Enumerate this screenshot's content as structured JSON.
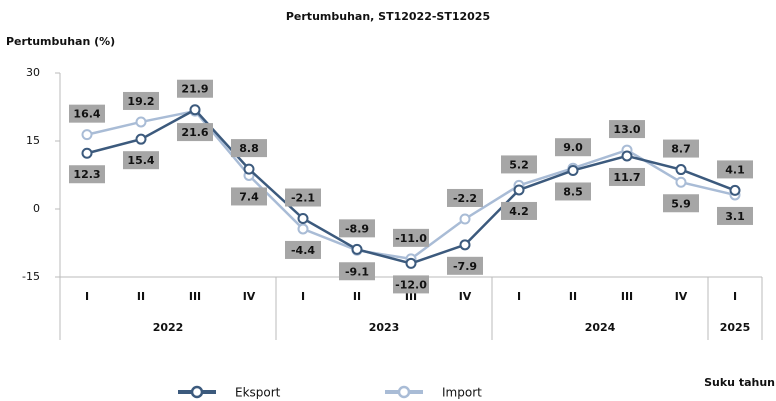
{
  "chart_data": {
    "type": "line",
    "title": "Pertumbuhan, ST12022-ST12025",
    "y_label": "Pertumbuhan (%)",
    "x_label": "Suku tahun",
    "categories": [
      "I",
      "II",
      "III",
      "IV",
      "I",
      "II",
      "III",
      "IV",
      "I",
      "II",
      "III",
      "IV",
      "I"
    ],
    "x_groups": [
      "2022",
      "2023",
      "2024",
      "2025"
    ],
    "ylim": [
      -15,
      30
    ],
    "yticks": [
      -15,
      0,
      15,
      30
    ],
    "series": [
      {
        "name": "Eksport",
        "color": "#3c5a7d",
        "values": [
          12.3,
          15.4,
          21.9,
          8.8,
          -2.1,
          -8.9,
          -12.0,
          -7.9,
          4.2,
          8.5,
          11.7,
          8.7,
          4.1
        ],
        "value_labels": [
          "12.3",
          "15.4",
          "21.9",
          "8.8",
          "-2.1",
          "-8.9",
          "-12.0",
          "-7.9",
          "4.2",
          "8.5",
          "11.7",
          "8.7",
          "4.1"
        ]
      },
      {
        "name": "Import",
        "color": "#a9bcd6",
        "values": [
          16.4,
          19.2,
          21.6,
          7.4,
          -4.4,
          -9.1,
          -11.0,
          -2.2,
          5.2,
          9.0,
          13.0,
          5.9,
          3.1
        ],
        "value_labels": [
          "16.4",
          "19.2",
          "21.6",
          "7.4",
          "-4.4",
          "-9.1",
          "-11.0",
          "-2.2",
          "5.2",
          "9.0",
          "13.0",
          "5.9",
          "3.1"
        ]
      }
    ]
  }
}
